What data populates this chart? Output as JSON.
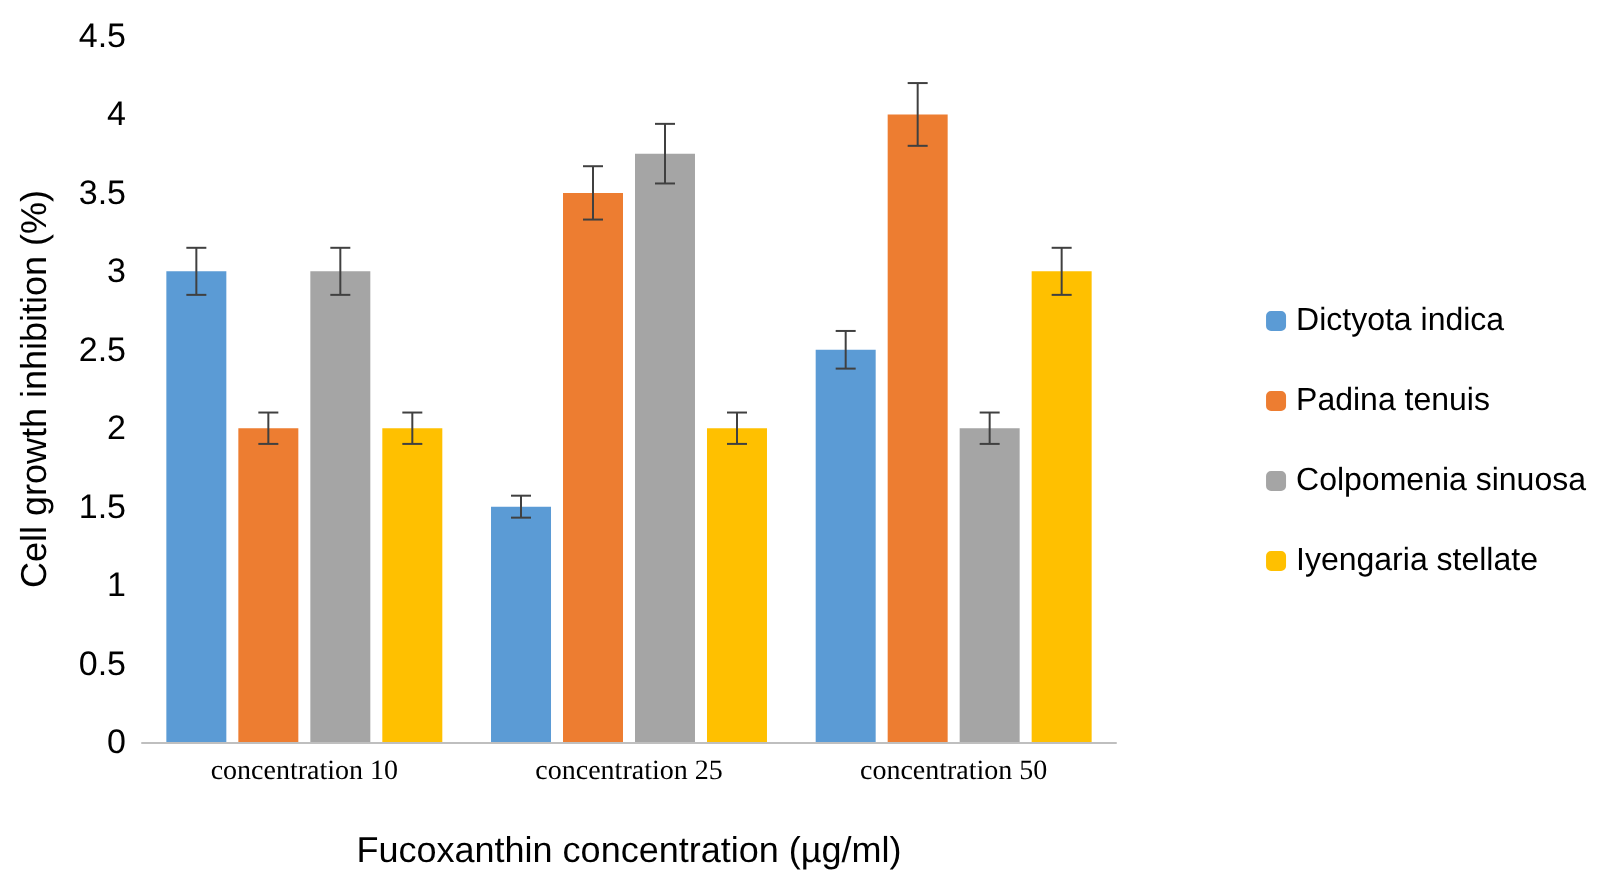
{
  "chart_data": {
    "type": "bar",
    "xlabel": "Fucoxanthin concentration (µg/ml)",
    "ylabel": "Cell growth inhibition (%)",
    "categories": [
      "concentration 10",
      "concentration 25",
      "concentration 50"
    ],
    "series": [
      {
        "name": "Dictyota indica",
        "color": "#5b9bd5",
        "values": [
          3.0,
          1.5,
          2.5
        ],
        "errors": [
          0.15,
          0.07,
          0.12
        ]
      },
      {
        "name": "Padina tenuis",
        "color": "#ed7d31",
        "values": [
          2.0,
          3.5,
          4.0
        ],
        "errors": [
          0.1,
          0.17,
          0.2
        ]
      },
      {
        "name": "Colpomenia sinuosa",
        "color": "#a5a5a5",
        "values": [
          3.0,
          3.75,
          2.0
        ],
        "errors": [
          0.15,
          0.19,
          0.1
        ]
      },
      {
        "name": "Iyengaria stellate",
        "color": "#ffc000",
        "values": [
          2.0,
          2.0,
          3.0
        ],
        "errors": [
          0.1,
          0.1,
          0.15
        ]
      }
    ],
    "ylim": [
      0,
      4.5
    ],
    "yticks": [
      0,
      0.5,
      1,
      1.5,
      2,
      2.5,
      3,
      3.5,
      4,
      4.5
    ],
    "grid": false,
    "legend": "right"
  }
}
